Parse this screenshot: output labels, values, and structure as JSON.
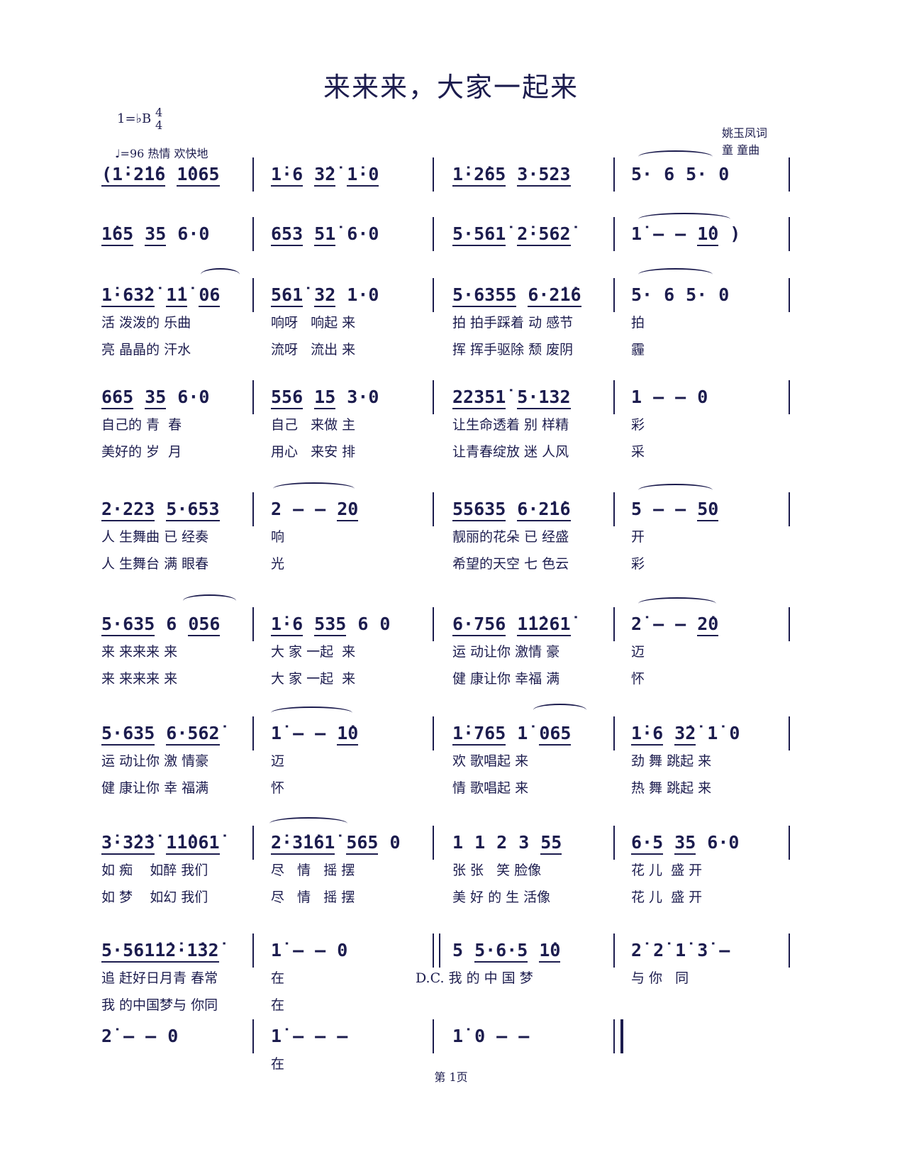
{
  "title": "来来来，大家一起来",
  "key": {
    "label": "1=♭B",
    "time_top": "4",
    "time_bottom": "4"
  },
  "tempo": "♩=96  热情  欢快地",
  "credits": {
    "lyricist": "姚玉凤词",
    "composer": "童  童曲"
  },
  "footer": "第 1页",
  "rows": [
    {
      "measures": [
        {
          "notes": [
            "(1̇·2̇1̇6",
            "1̇065"
          ]
        },
        {
          "notes": [
            "1̇·6",
            "3̇2̇",
            "1̇·0"
          ]
        },
        {
          "notes": [
            "1̇·2̇65",
            "3·523"
          ]
        },
        {
          "notes": [
            "5·",
            "6",
            "5·",
            "0"
          ]
        }
      ],
      "lyrics": []
    },
    {
      "measures": [
        {
          "notes": [
            "1̇65",
            "35",
            "6·0"
          ]
        },
        {
          "notes": [
            "653",
            "51̇",
            "6·0"
          ]
        },
        {
          "notes": [
            "5·561̇",
            "2̇·562̇"
          ]
        },
        {
          "notes": [
            "1̇",
            "–",
            "–",
            "1̇0",
            ")"
          ]
        }
      ],
      "lyrics": []
    },
    {
      "measures": [
        {
          "notes": [
            "1̇·63̇2̇",
            "1̇1̇",
            "06"
          ]
        },
        {
          "notes": [
            "561̇",
            "32",
            "1·0"
          ]
        },
        {
          "notes": [
            "5·6355",
            "6·2̇1̇6"
          ]
        },
        {
          "notes": [
            "5·",
            "6",
            "5·",
            "0"
          ]
        }
      ],
      "lyrics": [
        [
          "活 泼泼的 乐曲",
          "响呀   响起 来",
          "拍 拍手踩着 动 感节",
          "拍"
        ],
        [
          "亮 晶晶的 汗水",
          "流呀   流出 来",
          "挥 挥手驱除 颓 废阴",
          "霾"
        ]
      ]
    },
    {
      "measures": [
        {
          "notes": [
            "665",
            "35",
            "6·0"
          ]
        },
        {
          "notes": [
            "556",
            "15",
            "3·0"
          ]
        },
        {
          "notes": [
            "22351̇",
            "5·132"
          ]
        },
        {
          "notes": [
            "1",
            "–",
            "–",
            "0"
          ]
        }
      ],
      "lyrics": [
        [
          "自己的 青  春",
          "自己   来做 主",
          "让生命透着 别 样精",
          "彩"
        ],
        [
          "美好的 岁  月",
          "用心   来安 排",
          "让青春绽放 迷 人风",
          "采"
        ]
      ]
    },
    {
      "measures": [
        {
          "notes": [
            "2·223",
            "5·653"
          ]
        },
        {
          "notes": [
            "2",
            "–",
            "–",
            "20"
          ]
        },
        {
          "notes": [
            "55635",
            "6·2̇1̇6"
          ]
        },
        {
          "notes": [
            "5",
            "–",
            "–",
            "50"
          ]
        }
      ],
      "lyrics": [
        [
          "人 生舞曲 已 经奏",
          "响",
          "靓丽的花朵 已 经盛",
          "开"
        ],
        [
          "人 生舞台 满 眼春",
          "光",
          "希望的天空 七 色云",
          "彩"
        ]
      ]
    },
    {
      "measures": [
        {
          "notes": [
            "5·635",
            "6",
            "056"
          ]
        },
        {
          "notes": [
            "1̇·6",
            "535",
            "6",
            "0"
          ]
        },
        {
          "notes": [
            "6·756",
            "1̇1̇261̇"
          ]
        },
        {
          "notes": [
            "2̇",
            "–",
            "–",
            "2̇0"
          ]
        }
      ],
      "lyrics": [
        [
          "来 来来来 来",
          "大 家 一起  来",
          "运 动让你 激情 豪",
          "迈"
        ],
        [
          "来 来来来 来",
          "大 家 一起  来",
          "健 康让你 幸福 满",
          "怀"
        ]
      ]
    },
    {
      "measures": [
        {
          "notes": [
            "5·635",
            "6·562̇"
          ]
        },
        {
          "notes": [
            "1̇",
            "–",
            "–",
            "1̇0"
          ]
        },
        {
          "notes": [
            "1̇·765",
            "1̇",
            "065"
          ]
        },
        {
          "notes": [
            "1̇·6",
            "3̇2̇",
            "1̇",
            "0"
          ]
        }
      ],
      "lyrics": [
        [
          "运 动让你 激 情豪",
          "迈",
          "欢 歌唱起 来",
          "劲 舞 跳起 来"
        ],
        [
          "健 康让你 幸 福满",
          "怀",
          "情 歌唱起 来",
          "热 舞 跳起 来"
        ]
      ]
    },
    {
      "measures": [
        {
          "notes": [
            "3̇·3̇2̇3̇",
            "1̇1̇061̇"
          ]
        },
        {
          "notes": [
            "2̇·3̇1̇61̇",
            "565",
            "0"
          ]
        },
        {
          "notes": [
            "1",
            "1",
            "2",
            "3",
            "55"
          ]
        },
        {
          "notes": [
            "6·5",
            "35",
            "6·0"
          ]
        }
      ],
      "lyrics": [
        [
          "如 痴    如醉 我们",
          "尽   情   摇 摆",
          "张 张   笑 脸像",
          "花 儿  盛 开"
        ],
        [
          "如 梦    如幻 我们",
          "尽   情   摇 摆",
          "美 好 的 生 活像",
          "花 儿  盛 开"
        ]
      ]
    },
    {
      "measures": [
        {
          "notes": [
            "5·561̇1̇2̇·1̇32̇"
          ]
        },
        {
          "notes": [
            "1̇",
            "–",
            "–",
            "0"
          ]
        },
        {
          "notes": [
            "5",
            "5·6·5",
            "1̇0"
          ],
          "barline_before": "double"
        },
        {
          "notes": [
            "2̇",
            "2̇",
            "1̇",
            "3̇",
            "–"
          ]
        }
      ],
      "lyrics": [
        [
          "追 赶好日月青 春常",
          "在",
          "D.C. 我 的 中 国 梦",
          "与 你   同"
        ],
        [
          "我 的中国梦与 你同",
          "在",
          "",
          ""
        ]
      ]
    },
    {
      "measures": [
        {
          "notes": [
            "2̇",
            "–",
            "–",
            "0"
          ]
        },
        {
          "notes": [
            "1̇",
            "–",
            "–",
            "–"
          ]
        },
        {
          "notes": [
            "1̇",
            "0",
            "–",
            "–"
          ]
        }
      ],
      "lyrics": [
        [
          "",
          "在",
          ""
        ]
      ]
    }
  ]
}
